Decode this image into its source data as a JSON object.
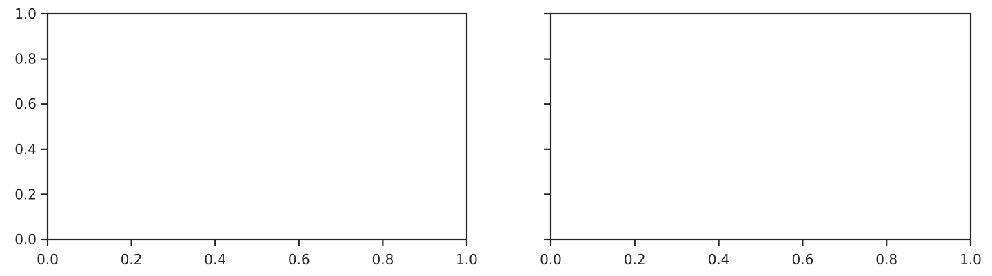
{
  "chart_data": [
    {
      "type": "scatter",
      "title": "",
      "xlabel": "",
      "ylabel": "",
      "xlim": [
        0,
        1
      ],
      "ylim": [
        0,
        1
      ],
      "xticks": [
        "0.0",
        "0.2",
        "0.4",
        "0.6",
        "0.8",
        "1.0"
      ],
      "yticks": [
        "0.0",
        "0.2",
        "0.4",
        "0.6",
        "0.8",
        "1.0"
      ],
      "show_yticklabels": true,
      "grid": false,
      "series": []
    },
    {
      "type": "scatter",
      "title": "",
      "xlabel": "",
      "ylabel": "",
      "xlim": [
        0,
        1
      ],
      "ylim": [
        0,
        1
      ],
      "xticks": [
        "0.0",
        "0.2",
        "0.4",
        "0.6",
        "0.8",
        "1.0"
      ],
      "yticks": [
        "0.0",
        "0.2",
        "0.4",
        "0.6",
        "0.8",
        "1.0"
      ],
      "show_yticklabels": false,
      "grid": false,
      "series": []
    }
  ],
  "colors": {
    "axis": "#262626",
    "background": "#ffffff"
  }
}
